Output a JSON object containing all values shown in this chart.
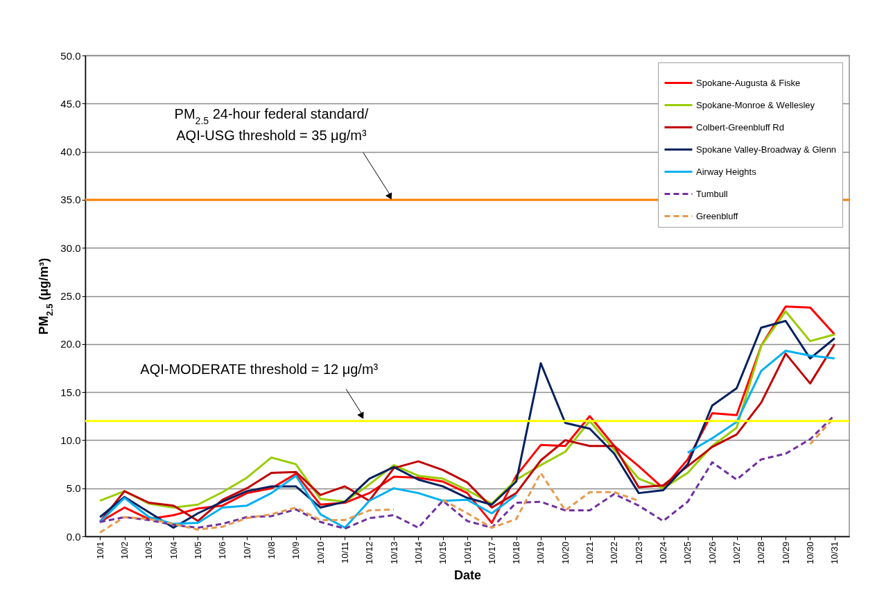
{
  "chart_data": {
    "type": "line",
    "xlabel": "Date",
    "ylabel": "PM$_{2.5}$ (μg/m³)",
    "categories": [
      "10/1",
      "10/2",
      "10/3",
      "10/4",
      "10/5",
      "10/6",
      "10/7",
      "10/8",
      "10/9",
      "10/10",
      "10/11",
      "10/12",
      "10/13",
      "10/14",
      "10/15",
      "10/16",
      "10/17",
      "10/18",
      "10/19",
      "10/20",
      "10/21",
      "10/22",
      "10/23",
      "10/24",
      "10/25",
      "10/26",
      "10/27",
      "10/28",
      "10/29",
      "10/30",
      "10/31"
    ],
    "ylim": [
      0,
      50
    ],
    "yticks": [
      {
        "value": 0,
        "label": "0.0"
      },
      {
        "value": 5,
        "label": "5.0"
      },
      {
        "value": 10,
        "label": "10.0"
      },
      {
        "value": 15,
        "label": "15.0"
      },
      {
        "value": 20,
        "label": "20.0"
      },
      {
        "value": 25,
        "label": "25.0"
      },
      {
        "value": 30,
        "label": "30.0"
      },
      {
        "value": 35,
        "label": "35.0"
      },
      {
        "value": 40,
        "label": "40.0"
      },
      {
        "value": 45,
        "label": "45.0"
      },
      {
        "value": 50,
        "label": "50.0"
      }
    ],
    "grid": "y",
    "legend": "top right",
    "marker": "none",
    "series": [
      {
        "name": "Spokane-Augusta & Fiske",
        "color": "#ff0000",
        "line_style": "solid",
        "values": [
          1.5,
          3.0,
          1.8,
          2.2,
          2.9,
          3.2,
          4.5,
          5.0,
          6.5,
          3.3,
          3.5,
          4.5,
          6.2,
          6.1,
          5.7,
          4.5,
          1.4,
          6.3,
          9.5,
          9.4,
          12.5,
          9.4,
          7.3,
          5.0,
          8.0,
          12.8,
          12.6,
          19.8,
          23.9,
          23.8,
          21.0
        ]
      },
      {
        "name": "Spokane-Monroe & Wellesley",
        "color": "#99cc00",
        "line_style": "solid",
        "values": [
          3.7,
          4.7,
          3.4,
          3.0,
          3.3,
          4.6,
          6.1,
          8.2,
          7.5,
          3.9,
          3.6,
          5.4,
          7.4,
          6.3,
          6.0,
          4.8,
          3.4,
          5.9,
          7.4,
          8.8,
          12.0,
          9.0,
          6.0,
          5.0,
          6.6,
          9.4,
          11.3,
          19.8,
          23.4,
          20.3,
          21.0
        ]
      },
      {
        "name": "Colbert-Greenbluff Rd",
        "color": "#c00000",
        "line_style": "solid",
        "values": [
          1.5,
          4.7,
          3.5,
          3.2,
          1.6,
          3.8,
          5.0,
          6.6,
          6.7,
          4.3,
          5.2,
          3.7,
          7.1,
          7.8,
          6.9,
          5.6,
          3.0,
          4.5,
          7.9,
          10.0,
          9.4,
          9.4,
          5.1,
          5.3,
          7.3,
          9.3,
          10.6,
          13.9,
          19.0,
          15.9,
          20.0
        ]
      },
      {
        "name": "Spokane Valley-Broadway & Glenn",
        "color": "#002060",
        "line_style": "solid",
        "values": [
          2.0,
          4.1,
          2.5,
          0.9,
          2.4,
          3.6,
          4.7,
          5.2,
          5.2,
          3.0,
          3.6,
          6.0,
          7.2,
          5.9,
          5.2,
          4.0,
          3.3,
          5.7,
          18.0,
          11.8,
          11.2,
          8.6,
          4.5,
          4.8,
          7.5,
          13.6,
          15.4,
          21.7,
          22.4,
          18.5,
          20.6
        ]
      },
      {
        "name": "Airway Heights",
        "color": "#00b0f0",
        "line_style": "solid",
        "values": [
          1.5,
          4.0,
          2.0,
          1.3,
          1.4,
          3.0,
          3.2,
          4.5,
          6.3,
          2.3,
          0.9,
          3.7,
          5.0,
          4.5,
          3.7,
          3.8,
          2.4,
          4.3,
          null,
          null,
          null,
          null,
          null,
          null,
          8.7,
          10.2,
          11.9,
          17.2,
          19.3,
          18.8,
          18.5
        ]
      },
      {
        "name": "Tumbull",
        "color": "#7030a0",
        "line_style": "dashed",
        "values": [
          1.5,
          2.0,
          1.7,
          1.2,
          0.9,
          1.3,
          2.0,
          2.1,
          2.8,
          1.5,
          0.8,
          1.9,
          2.2,
          0.9,
          3.7,
          1.6,
          0.9,
          3.5,
          3.6,
          2.7,
          2.7,
          4.4,
          3.2,
          1.6,
          3.6,
          7.7,
          5.9,
          8.0,
          8.6,
          10.1,
          12.6
        ]
      },
      {
        "name": "Greenbluff",
        "color": "#e59a4e",
        "line_style": "dashed",
        "values": [
          0.4,
          2.0,
          1.8,
          1.3,
          0.7,
          1.0,
          1.9,
          2.3,
          3.0,
          1.7,
          1.7,
          2.7,
          2.8,
          null,
          3.8,
          2.4,
          0.9,
          1.8,
          6.6,
          2.7,
          4.6,
          4.6,
          3.7,
          null,
          null,
          null,
          null,
          null,
          null,
          9.6,
          12.4
        ]
      }
    ],
    "ref_lines": [
      {
        "axis": "y",
        "value": 35,
        "color": "#ff8000",
        "label": "PM$_{2.5}$ 24-hour federal standard/\nAQI-USG threshold = 35 μg/m³"
      },
      {
        "axis": "y",
        "value": 12,
        "color": "#ffff00",
        "label": "AQI-MODERATE threshold = 12 μg/m³"
      }
    ]
  }
}
